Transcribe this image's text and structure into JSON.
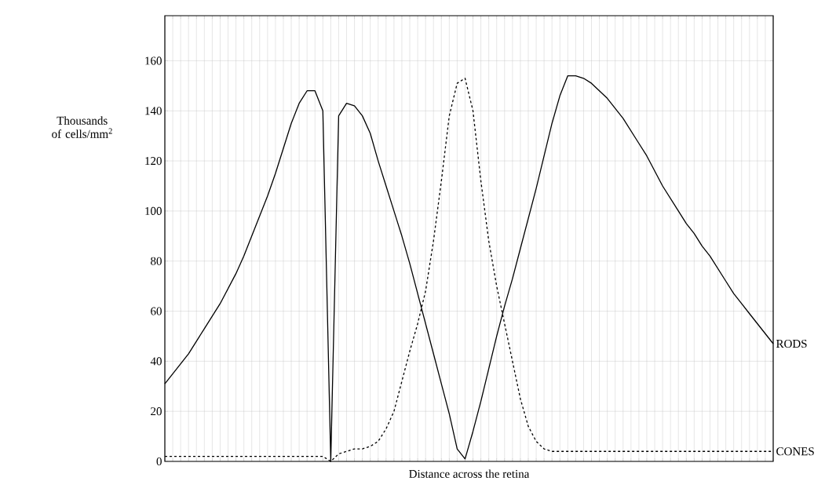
{
  "chart_data": {
    "type": "line",
    "xlabel": "Distance across the retina",
    "ylabel": "Thousands of cells/mm$^{2}$",
    "categories": [
      null,
      null,
      null,
      null,
      null,
      null,
      null,
      null,
      null,
      null,
      null,
      null,
      null,
      null,
      null,
      null,
      null,
      null,
      null,
      null,
      null,
      null,
      null,
      null,
      null,
      null,
      null,
      null,
      null,
      null,
      null,
      null,
      null,
      null,
      null,
      null,
      null,
      null,
      null,
      null,
      null,
      null,
      null,
      null,
      null,
      null,
      null,
      null,
      null,
      null,
      null,
      null,
      null,
      null,
      null,
      null,
      null,
      null,
      null,
      null,
      null,
      null,
      null,
      null,
      null,
      null,
      null,
      null,
      null,
      null,
      null,
      null,
      null,
      null,
      null,
      null,
      null,
      null
    ],
    "series": [
      {
        "name": "RODS",
        "color": "#000000",
        "line_style": "solid",
        "values": [
          31,
          35,
          39,
          43,
          48,
          53,
          58,
          63,
          69,
          75,
          82,
          90,
          98,
          106,
          115,
          125,
          135,
          143,
          148,
          148,
          140,
          0,
          138,
          143,
          142,
          138,
          131,
          120,
          110,
          100,
          90,
          79,
          67,
          55,
          43,
          31,
          19,
          5,
          1,
          12,
          24,
          37,
          50,
          62,
          73,
          85,
          97,
          109,
          122,
          135,
          146,
          154,
          154,
          153,
          151,
          148,
          145,
          141,
          137,
          132,
          127,
          122,
          116,
          110,
          105,
          100,
          95,
          91,
          86,
          82,
          77,
          72,
          67,
          63,
          59,
          55,
          51,
          47
        ]
      },
      {
        "name": "CONES",
        "color": "#000000",
        "line_style": "dashed",
        "values": [
          2,
          2,
          2,
          2,
          2,
          2,
          2,
          2,
          2,
          2,
          2,
          2,
          2,
          2,
          2,
          2,
          2,
          2,
          2,
          2,
          2,
          0,
          3,
          4,
          5,
          5,
          6,
          8,
          13,
          20,
          32,
          44,
          55,
          68,
          88,
          112,
          138,
          151,
          153,
          140,
          112,
          88,
          70,
          55,
          40,
          25,
          14,
          8,
          5,
          4,
          4,
          4,
          4,
          4,
          4,
          4,
          4,
          4,
          4,
          4,
          4,
          4,
          4,
          4,
          4,
          4,
          4,
          4,
          4,
          4,
          4,
          4,
          4,
          4,
          4,
          4,
          4,
          4
        ]
      }
    ],
    "ylim": [
      0,
      178
    ],
    "yticks": [
      0,
      20,
      40,
      60,
      80,
      100,
      120,
      140,
      160
    ],
    "grid": true,
    "tick_labels": "y"
  }
}
